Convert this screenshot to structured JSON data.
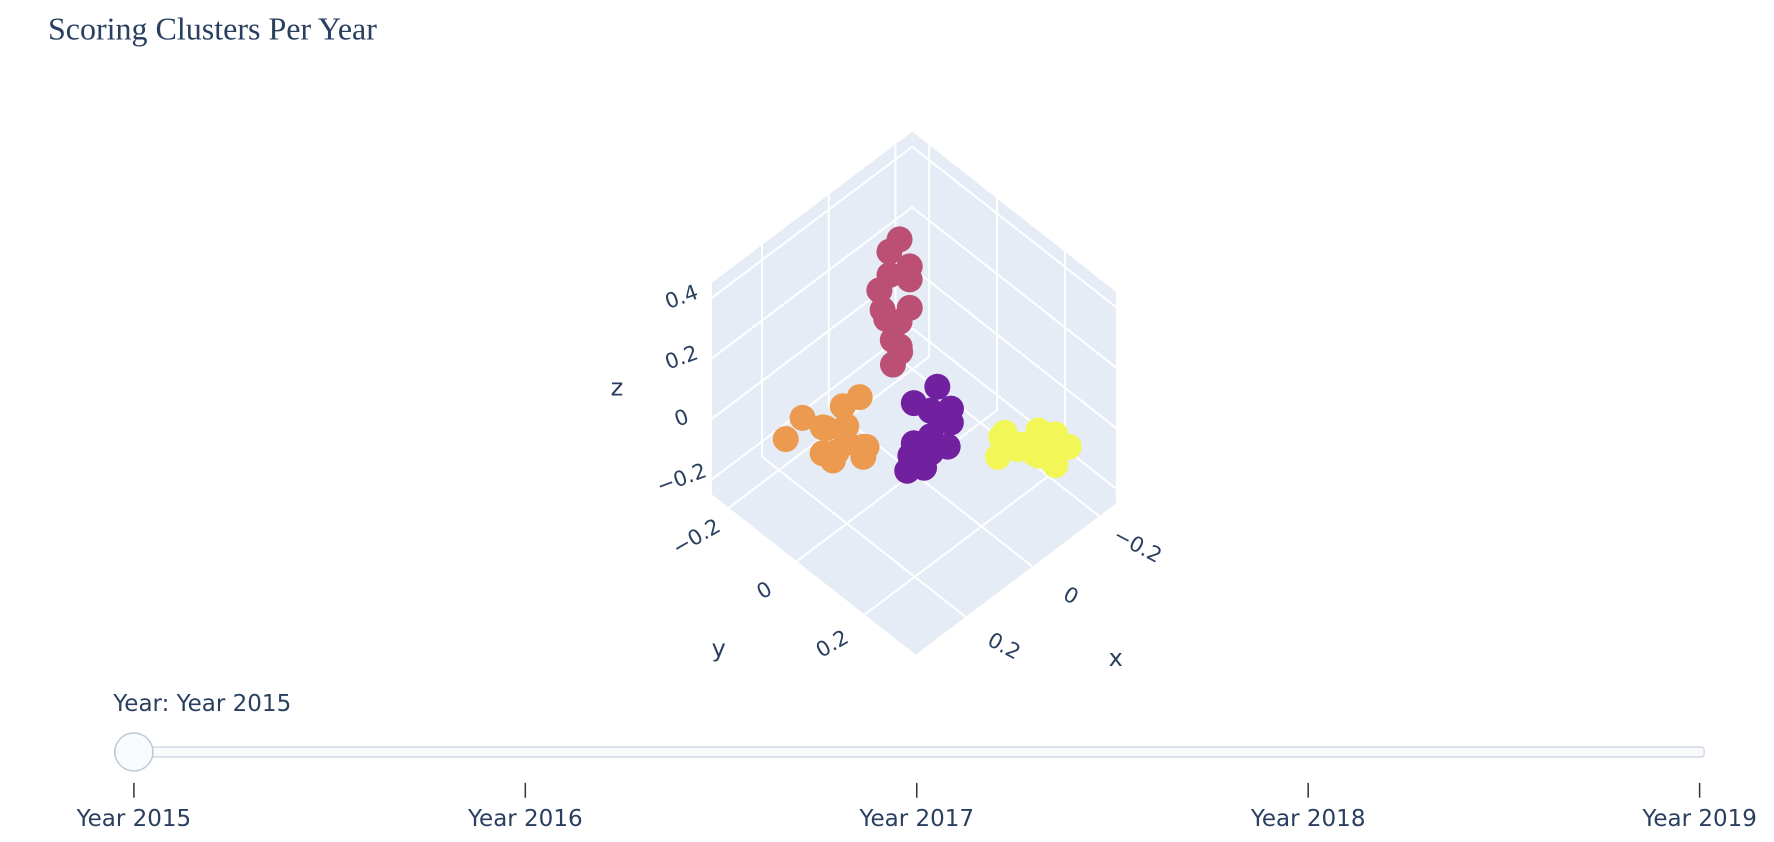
{
  "chart_data": {
    "type": "scatter3d",
    "title": "Scoring Clusters Per Year",
    "xlabel": "x",
    "ylabel": "y",
    "zlabel": "z",
    "xlim": [
      -0.25,
      0.35
    ],
    "ylim": [
      -0.25,
      0.35
    ],
    "zlim": [
      -0.25,
      0.45
    ],
    "xticks": [
      {
        "value": -0.2,
        "label": "−0.2"
      },
      0,
      0.2
    ],
    "yticks": [
      {
        "value": -0.2,
        "label": "−0.2"
      },
      0,
      0.2
    ],
    "zticks": [
      {
        "value": -0.2,
        "label": "−0.2"
      },
      0,
      0.2,
      0.4
    ],
    "grid": true,
    "series": [
      {
        "color": "#bb5074",
        "x": [
          -0.08,
          -0.07,
          -0.09,
          -0.06,
          -0.1,
          -0.05,
          -0.08,
          -0.04,
          -0.07,
          -0.09,
          -0.06,
          -0.08,
          0.02,
          -0.05
        ],
        "y": [
          -0.12,
          -0.14,
          -0.1,
          -0.13,
          -0.11,
          -0.15,
          -0.09,
          -0.12,
          -0.16,
          -0.13,
          -0.1,
          -0.14,
          -0.02,
          -0.11
        ],
        "z": [
          0.35,
          0.3,
          0.27,
          0.24,
          0.21,
          0.18,
          0.15,
          0.12,
          0.09,
          0.06,
          0.03,
          0.0,
          0.15,
          -0.03
        ]
      },
      {
        "color": "#eb9a50",
        "x": [
          0.1,
          0.12,
          0.15,
          0.08,
          0.18,
          0.11,
          0.14,
          0.09,
          0.16,
          0.13,
          0.2,
          0.07,
          0.12,
          0.1
        ],
        "y": [
          -0.1,
          -0.08,
          -0.12,
          -0.06,
          -0.15,
          -0.04,
          -0.1,
          -0.12,
          -0.07,
          -0.14,
          -0.18,
          -0.09,
          -0.03,
          -0.16
        ],
        "z": [
          -0.1,
          -0.12,
          -0.08,
          -0.15,
          -0.05,
          -0.14,
          -0.18,
          -0.06,
          -0.11,
          -0.2,
          -0.13,
          -0.02,
          -0.09,
          -0.16
        ]
      },
      {
        "color": "#7120a0",
        "x": [
          0.0,
          0.02,
          0.04,
          -0.02,
          0.06,
          0.01,
          0.03,
          0.05,
          -0.01,
          0.02,
          0.07,
          0.0,
          0.04,
          0.03
        ],
        "y": [
          0.05,
          0.07,
          0.04,
          0.09,
          0.06,
          0.1,
          0.03,
          0.08,
          0.06,
          0.12,
          0.05,
          0.11,
          0.09,
          0.02
        ],
        "z": [
          0.0,
          -0.05,
          0.05,
          -0.02,
          -0.08,
          0.03,
          -0.1,
          -0.12,
          0.08,
          -0.04,
          -0.14,
          0.06,
          -0.07,
          -0.15
        ]
      },
      {
        "color": "#f2f757",
        "x": [
          -0.1,
          -0.12,
          -0.15,
          -0.18,
          -0.2,
          -0.13,
          -0.16,
          -0.11,
          -0.14,
          -0.19,
          -0.17,
          -0.09,
          -0.12,
          -0.15
        ],
        "y": [
          0.17,
          0.2,
          0.22,
          0.24,
          0.26,
          0.18,
          0.21,
          0.15,
          0.25,
          0.23,
          0.19,
          0.16,
          0.23,
          0.27
        ],
        "z": [
          -0.05,
          -0.08,
          -0.04,
          -0.06,
          -0.1,
          -0.12,
          -0.14,
          -0.09,
          -0.02,
          -0.12,
          -0.16,
          -0.13,
          -0.07,
          -0.11
        ]
      }
    ],
    "slider": {
      "prefix": "Year: ",
      "active": 0,
      "steps": [
        "Year 2015",
        "Year 2016",
        "Year 2017",
        "Year 2018",
        "Year 2019"
      ]
    }
  }
}
